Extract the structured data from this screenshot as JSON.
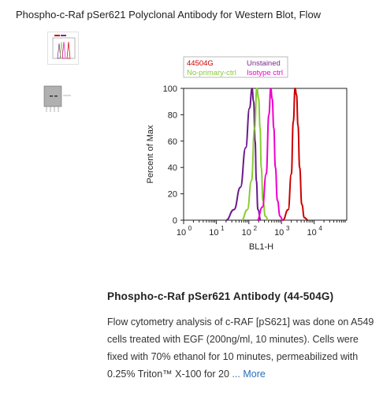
{
  "page": {
    "title": "Phospho-c-Raf pSer621 Polyclonal Antibody for Western Blot, Flow"
  },
  "thumbnails": [
    {
      "name": "flow-cytometry-thumbnail"
    },
    {
      "name": "western-blot-thumbnail"
    }
  ],
  "caption": {
    "title": "Phospho-c-Raf pSer621 Antibody (44-504G)",
    "text": "Flow cytometry analysis of c-RAF [pS621] was done on A549 cells treated with EGF (200ng/ml, 10 minutes). Cells were fixed with 70% ethanol for 10 minutes, permeabilized with 0.25% Triton™ X-100 for 20",
    "more_prefix": "...",
    "more_label": "More"
  },
  "chart_data": {
    "type": "line",
    "title": "",
    "xlabel": "BL1-H",
    "ylabel": "Percent of Max",
    "x_scale": "log",
    "xlim": [
      1,
      100000
    ],
    "ylim": [
      0,
      100
    ],
    "x_ticks": [
      "10",
      "10",
      "10",
      "10",
      "10"
    ],
    "x_tick_exponents": [
      "0",
      "1",
      "2",
      "3",
      "4"
    ],
    "y_ticks": [
      "0",
      "20",
      "40",
      "60",
      "80",
      "100"
    ],
    "legend": [
      {
        "label": "44504G",
        "color": "#cc0000"
      },
      {
        "label": "Unstained",
        "color": "#7a2a8c"
      },
      {
        "label": "No-primary-ctrl",
        "color": "#88cc33"
      },
      {
        "label": "Isotype ctrl",
        "color": "#ee00cc"
      }
    ],
    "series": [
      {
        "name": "Unstained",
        "color": "#6a1a8a",
        "x": [
          20,
          35,
          55,
          80,
          105,
          125,
          140,
          155,
          170,
          190,
          230
        ],
        "y": [
          0,
          8,
          25,
          55,
          85,
          100,
          90,
          60,
          30,
          8,
          0
        ]
      },
      {
        "name": "No-primary-ctrl",
        "color": "#88cc33",
        "x": [
          60,
          90,
          120,
          150,
          175,
          200,
          220,
          240,
          270,
          320,
          400
        ],
        "y": [
          0,
          8,
          30,
          70,
          100,
          92,
          70,
          40,
          15,
          3,
          0
        ]
      },
      {
        "name": "Isotype ctrl",
        "color": "#ee00cc",
        "x": [
          180,
          260,
          340,
          410,
          470,
          520,
          580,
          650,
          750,
          900,
          1100
        ],
        "y": [
          0,
          10,
          35,
          80,
          100,
          92,
          70,
          40,
          15,
          3,
          0
        ]
      },
      {
        "name": "44504G",
        "color": "#cc0000",
        "x": [
          1100,
          1600,
          2000,
          2300,
          2600,
          2900,
          3200,
          3600,
          4200,
          5000,
          6500
        ],
        "y": [
          0,
          8,
          35,
          75,
          100,
          95,
          72,
          40,
          12,
          2,
          0
        ]
      }
    ]
  }
}
